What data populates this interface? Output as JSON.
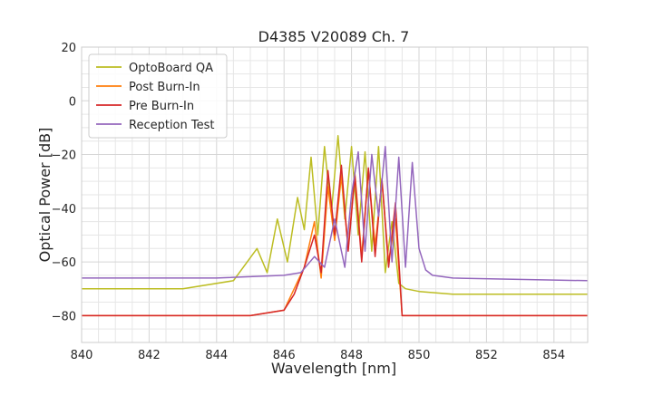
{
  "chart_data": {
    "type": "line",
    "title": "D4385 V20089 Ch. 7",
    "xlabel": "Wavelength [nm]",
    "ylabel": "Optical Power [dB]",
    "xlim": [
      840,
      855
    ],
    "ylim": [
      -90,
      20
    ],
    "xticks": [
      840,
      842,
      844,
      846,
      848,
      850,
      852,
      854
    ],
    "yticks": [
      20,
      0,
      -20,
      -40,
      -60,
      -80
    ],
    "xtick_labels": [
      "840",
      "842",
      "844",
      "846",
      "848",
      "850",
      "852",
      "854"
    ],
    "ytick_labels": [
      "20",
      "0",
      "−20",
      "−40",
      "−60",
      "−80"
    ],
    "grid": true,
    "minor_grid": true,
    "legend_position": "top-left",
    "series": [
      {
        "name": "OptoBoard QA",
        "color": "#bcbd22",
        "x": [
          840,
          843,
          844.5,
          845.2,
          845.5,
          845.8,
          846.1,
          846.4,
          846.6,
          846.8,
          847.0,
          847.2,
          847.4,
          847.6,
          847.8,
          848.0,
          848.2,
          848.4,
          848.6,
          848.8,
          849.0,
          849.2,
          849.4,
          849.6,
          850.0,
          851,
          855
        ],
        "y": [
          -70,
          -70,
          -67,
          -55,
          -64,
          -44,
          -60,
          -36,
          -48,
          -21,
          -50,
          -17,
          -42,
          -13,
          -44,
          -17,
          -50,
          -19,
          -56,
          -17,
          -64,
          -45,
          -68,
          -70,
          -71,
          -72,
          -72
        ]
      },
      {
        "name": "Post Burn-In",
        "color": "#ff7f0e",
        "x": [
          840,
          845,
          846.0,
          846.3,
          846.6,
          846.9,
          847.1,
          847.3,
          847.5,
          847.7,
          847.9,
          848.1,
          848.3,
          848.5,
          848.7,
          848.9,
          849.1,
          849.3,
          849.5,
          850,
          855
        ],
        "y": [
          -80,
          -80,
          -78,
          -70,
          -62,
          -45,
          -66,
          -32,
          -52,
          -28,
          -55,
          -27,
          -58,
          -26,
          -54,
          -30,
          -60,
          -44,
          -80,
          -80,
          -80
        ]
      },
      {
        "name": "Pre Burn-In",
        "color": "#d62728",
        "x": [
          840,
          845,
          846.0,
          846.3,
          846.6,
          846.9,
          847.1,
          847.3,
          847.5,
          847.7,
          847.9,
          848.1,
          848.3,
          848.5,
          848.7,
          848.9,
          849.1,
          849.3,
          849.5,
          850,
          855
        ],
        "y": [
          -80,
          -80,
          -78,
          -72,
          -62,
          -50,
          -64,
          -26,
          -50,
          -24,
          -56,
          -28,
          -60,
          -25,
          -58,
          -29,
          -62,
          -38,
          -80,
          -80,
          -80
        ]
      },
      {
        "name": "Reception Test",
        "color": "#9467bd",
        "x": [
          840,
          844,
          846,
          846.5,
          846.9,
          847.2,
          847.5,
          847.8,
          848.0,
          848.2,
          848.4,
          848.6,
          848.8,
          849.0,
          849.2,
          849.4,
          849.6,
          849.8,
          850.0,
          850.2,
          850.4,
          851,
          855
        ],
        "y": [
          -66,
          -66,
          -65,
          -64,
          -58,
          -62,
          -44,
          -62,
          -35,
          -19,
          -56,
          -20,
          -43,
          -17,
          -60,
          -21,
          -62,
          -23,
          -55,
          -63,
          -65,
          -66,
          -67
        ]
      }
    ]
  }
}
